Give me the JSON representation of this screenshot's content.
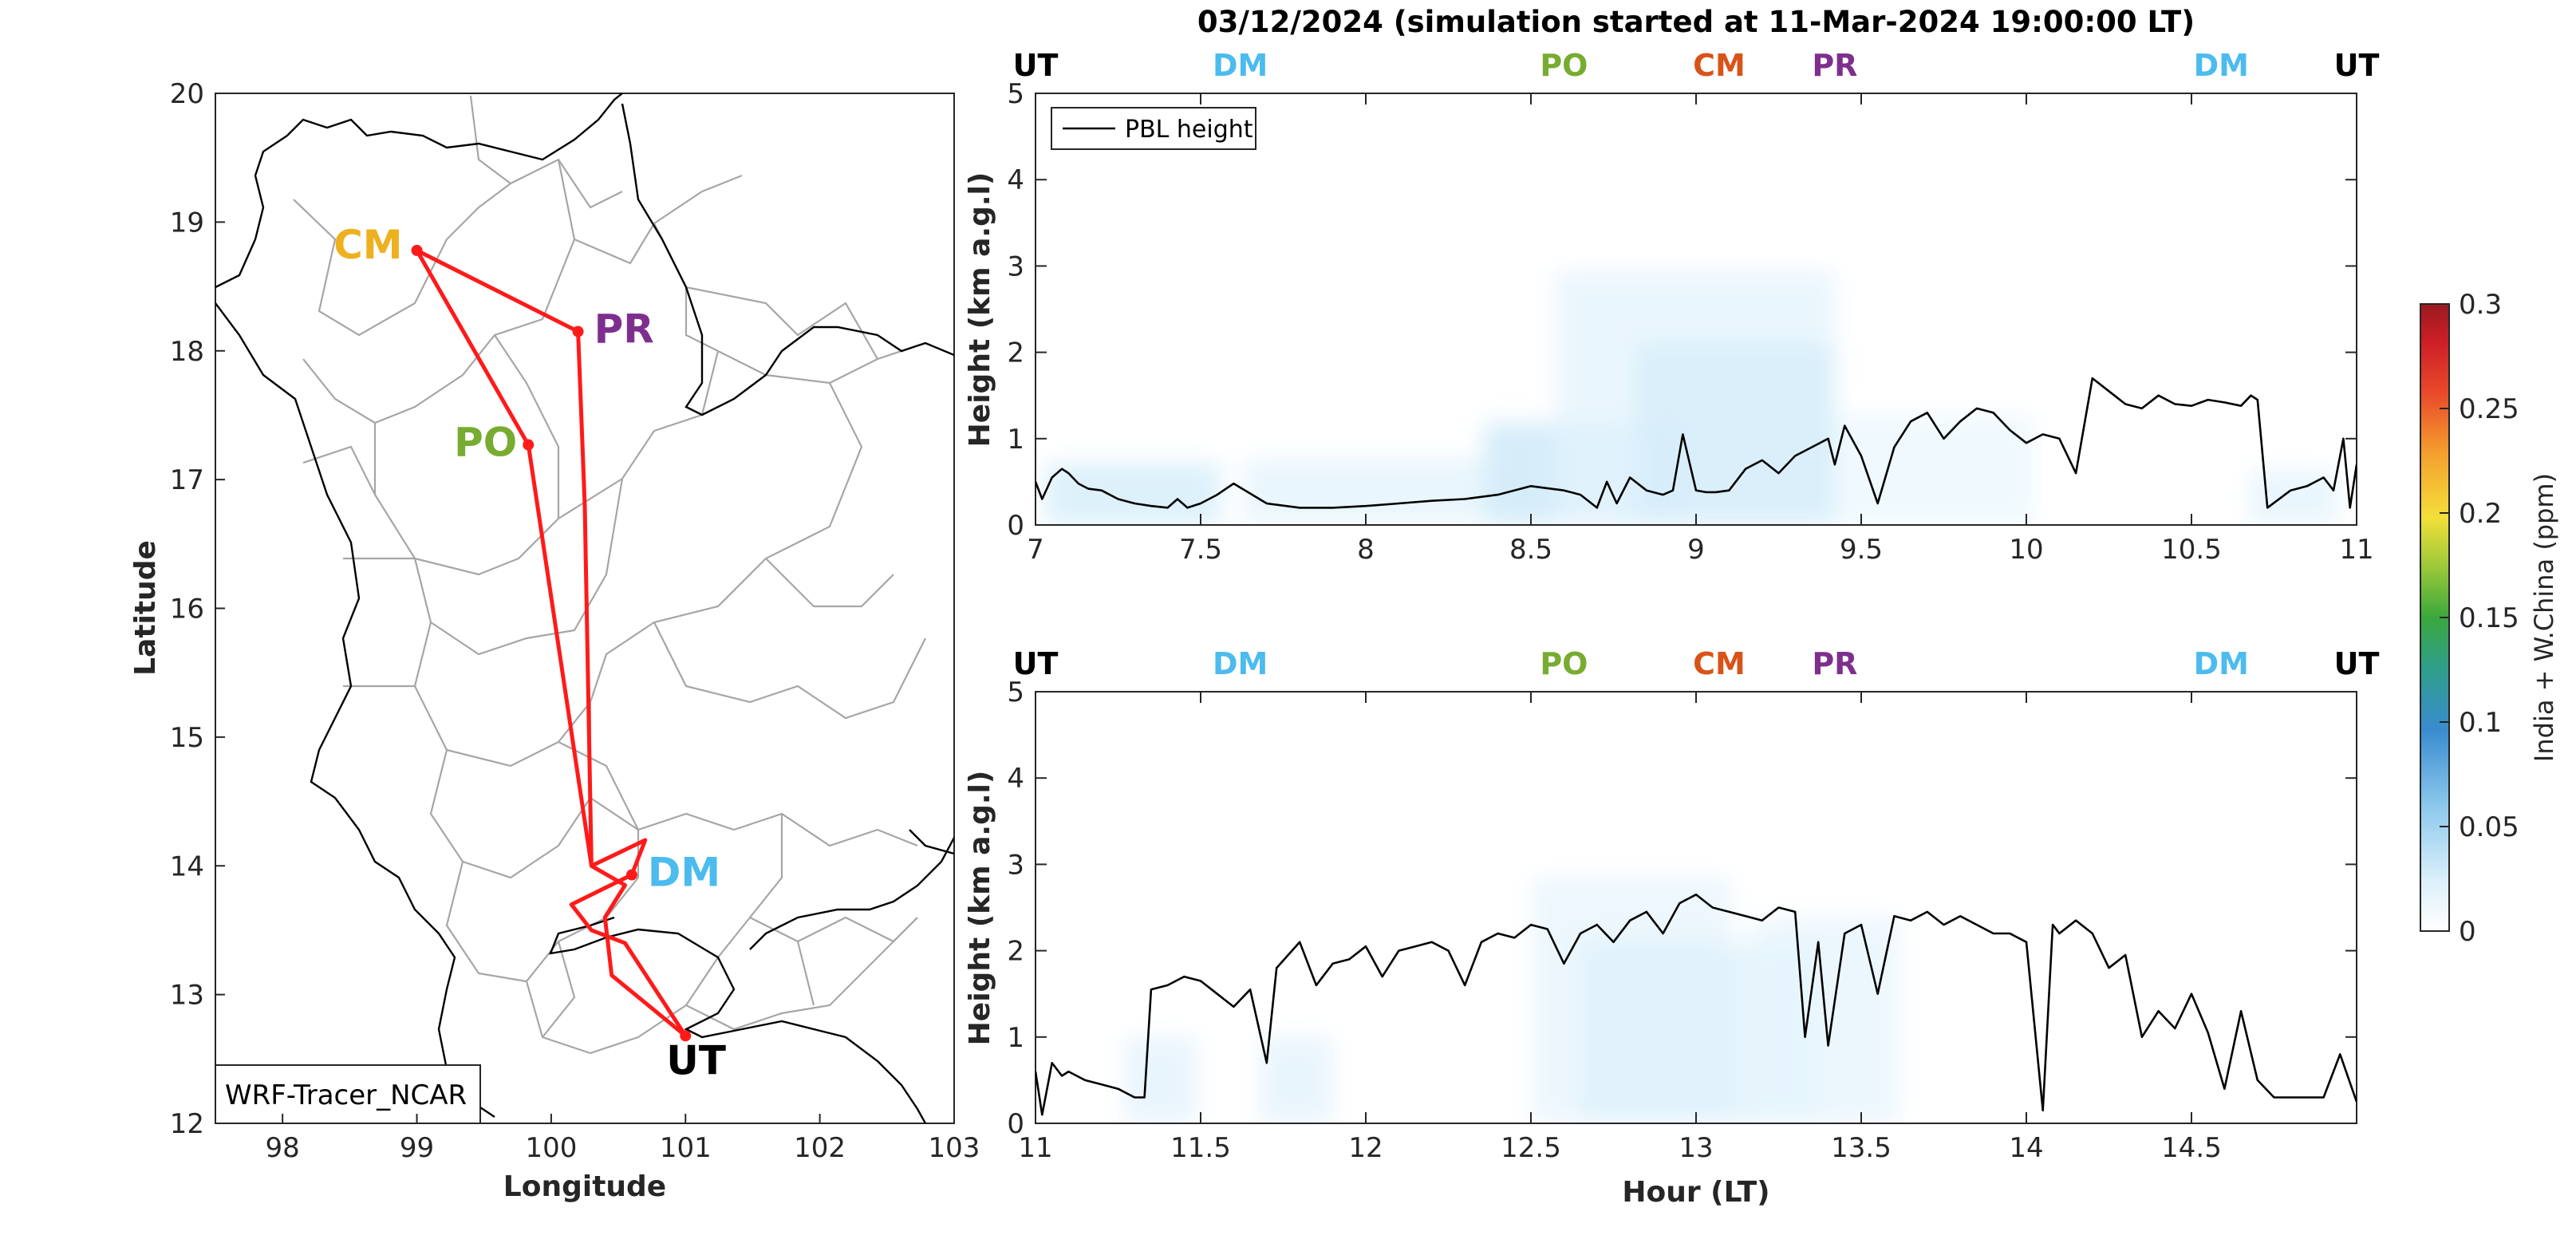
{
  "title": "03/12/2024 (simulation started at 11-Mar-2024 19:00:00 LT)",
  "colors": {
    "track": "#ff1a1a",
    "UT": "#000000",
    "DM": "#4cbbee",
    "PO": "#77ac30",
    "CM": "#edb120",
    "CM_top": "#d95319",
    "PR": "#7e2f8e",
    "tracer_light": "#dcf0fb",
    "tracer_mid": "#b8e0f6",
    "pbl": "#000000"
  },
  "map": {
    "xlabel": "Longitude",
    "ylabel": "Latitude",
    "xlim": [
      97.5,
      103
    ],
    "ylim": [
      12,
      20
    ],
    "xticks": [
      "98",
      "99",
      "100",
      "101",
      "102",
      "103"
    ],
    "yticks": [
      "12",
      "13",
      "14",
      "15",
      "16",
      "17",
      "18",
      "19",
      "20"
    ],
    "legend": "WRF-Tracer_NCAR",
    "sites": [
      {
        "id": "CM",
        "label": "CM",
        "lon": 99.0,
        "lat": 18.78
      },
      {
        "id": "PR",
        "label": "PR",
        "lon": 100.2,
        "lat": 18.15
      },
      {
        "id": "PO",
        "label": "PO",
        "lon": 99.83,
        "lat": 17.27
      },
      {
        "id": "DM",
        "label": "DM",
        "lon": 100.6,
        "lat": 13.93
      },
      {
        "id": "UT",
        "label": "UT",
        "lon": 101.0,
        "lat": 12.68
      }
    ]
  },
  "colorbar": {
    "label": "India + W.China (ppm)",
    "ticks": [
      "0",
      "0.05",
      "0.1",
      "0.15",
      "0.2",
      "0.25",
      "0.3"
    ],
    "range": [
      0,
      0.3
    ]
  },
  "chart_data": [
    {
      "type": "line",
      "ylabel": "Height (km a.g.l)",
      "xlabel": "",
      "xlim": [
        7,
        11
      ],
      "ylim": [
        0,
        5
      ],
      "xticks": [
        "7",
        "7.5",
        "8",
        "8.5",
        "9",
        "9.5",
        "10",
        "10.5",
        "11"
      ],
      "yticks": [
        "0",
        "1",
        "2",
        "3",
        "4",
        "5"
      ],
      "legend": "PBL height",
      "legend_position": "top-left",
      "site_marks": [
        {
          "label": "UT",
          "x": 7.0
        },
        {
          "label": "DM",
          "x": 7.62
        },
        {
          "label": "PO",
          "x": 8.6
        },
        {
          "label": "CM",
          "x": 9.07
        },
        {
          "label": "PR",
          "x": 9.42
        },
        {
          "label": "DM",
          "x": 10.59
        },
        {
          "label": "UT",
          "x": 11.0
        }
      ],
      "series": [
        {
          "name": "PBL height",
          "x": [
            7.0,
            7.02,
            7.05,
            7.08,
            7.1,
            7.13,
            7.16,
            7.2,
            7.25,
            7.3,
            7.35,
            7.4,
            7.43,
            7.46,
            7.5,
            7.55,
            7.6,
            7.7,
            7.8,
            7.9,
            8.0,
            8.1,
            8.2,
            8.3,
            8.4,
            8.5,
            8.6,
            8.65,
            8.7,
            8.73,
            8.76,
            8.8,
            8.85,
            8.9,
            8.93,
            8.96,
            9.0,
            9.03,
            9.06,
            9.1,
            9.15,
            9.2,
            9.25,
            9.3,
            9.35,
            9.4,
            9.42,
            9.45,
            9.5,
            9.55,
            9.6,
            9.65,
            9.7,
            9.75,
            9.8,
            9.85,
            9.9,
            9.95,
            10.0,
            10.05,
            10.1,
            10.15,
            10.2,
            10.25,
            10.3,
            10.35,
            10.4,
            10.45,
            10.5,
            10.55,
            10.6,
            10.65,
            10.68,
            10.7,
            10.73,
            10.8,
            10.85,
            10.9,
            10.93,
            10.96,
            10.98,
            11.0
          ],
          "y": [
            0.5,
            0.3,
            0.55,
            0.65,
            0.6,
            0.48,
            0.42,
            0.4,
            0.3,
            0.25,
            0.22,
            0.2,
            0.3,
            0.2,
            0.25,
            0.35,
            0.48,
            0.25,
            0.2,
            0.2,
            0.22,
            0.25,
            0.28,
            0.3,
            0.35,
            0.45,
            0.4,
            0.35,
            0.2,
            0.5,
            0.25,
            0.55,
            0.4,
            0.35,
            0.4,
            1.05,
            0.4,
            0.38,
            0.38,
            0.4,
            0.65,
            0.75,
            0.6,
            0.8,
            0.9,
            1.0,
            0.7,
            1.15,
            0.8,
            0.25,
            0.9,
            1.2,
            1.3,
            1.0,
            1.2,
            1.35,
            1.3,
            1.1,
            0.95,
            1.05,
            1.0,
            0.6,
            1.7,
            1.55,
            1.4,
            1.35,
            1.5,
            1.4,
            1.38,
            1.45,
            1.42,
            1.38,
            1.5,
            1.45,
            0.2,
            0.4,
            0.45,
            0.55,
            0.4,
            1.0,
            0.2,
            0.7
          ]
        }
      ]
    },
    {
      "type": "line",
      "ylabel": "Height (km a.g.l)",
      "xlabel": "Hour (LT)",
      "xlim": [
        11,
        15
      ],
      "ylim": [
        0,
        5
      ],
      "xticks": [
        "11",
        "11.5",
        "12",
        "12.5",
        "13",
        "13.5",
        "14",
        "14.5"
      ],
      "yticks": [
        "0",
        "1",
        "2",
        "3",
        "4",
        "5"
      ],
      "site_marks": [
        {
          "label": "UT",
          "x": 11.0
        },
        {
          "label": "DM",
          "x": 11.62
        },
        {
          "label": "PO",
          "x": 12.6
        },
        {
          "label": "CM",
          "x": 13.07
        },
        {
          "label": "PR",
          "x": 13.42
        },
        {
          "label": "DM",
          "x": 14.59
        },
        {
          "label": "UT",
          "x": 15.0
        }
      ],
      "series": [
        {
          "name": "PBL height",
          "x": [
            11.0,
            11.02,
            11.05,
            11.08,
            11.1,
            11.15,
            11.2,
            11.25,
            11.3,
            11.33,
            11.35,
            11.4,
            11.45,
            11.5,
            11.55,
            11.6,
            11.65,
            11.7,
            11.73,
            11.8,
            11.85,
            11.9,
            11.95,
            12.0,
            12.05,
            12.1,
            12.15,
            12.2,
            12.25,
            12.3,
            12.35,
            12.4,
            12.45,
            12.5,
            12.55,
            12.6,
            12.65,
            12.7,
            12.75,
            12.8,
            12.85,
            12.9,
            12.95,
            13.0,
            13.05,
            13.1,
            13.15,
            13.2,
            13.25,
            13.3,
            13.33,
            13.37,
            13.4,
            13.45,
            13.5,
            13.55,
            13.6,
            13.65,
            13.7,
            13.75,
            13.8,
            13.85,
            13.9,
            13.95,
            14.0,
            14.05,
            14.08,
            14.1,
            14.15,
            14.2,
            14.25,
            14.3,
            14.35,
            14.4,
            14.45,
            14.5,
            14.55,
            14.6,
            14.65,
            14.7,
            14.75,
            14.8,
            14.85,
            14.9,
            14.95,
            15.0
          ],
          "y": [
            0.6,
            0.1,
            0.7,
            0.55,
            0.6,
            0.5,
            0.45,
            0.4,
            0.3,
            0.3,
            1.55,
            1.6,
            1.7,
            1.65,
            1.5,
            1.35,
            1.55,
            0.7,
            1.8,
            2.1,
            1.6,
            1.85,
            1.9,
            2.05,
            1.7,
            2.0,
            2.05,
            2.1,
            2.0,
            1.6,
            2.1,
            2.2,
            2.15,
            2.3,
            2.25,
            1.85,
            2.2,
            2.3,
            2.1,
            2.35,
            2.45,
            2.2,
            2.55,
            2.65,
            2.5,
            2.45,
            2.4,
            2.35,
            2.5,
            2.45,
            1.0,
            2.1,
            0.9,
            2.2,
            2.3,
            1.5,
            2.4,
            2.35,
            2.45,
            2.3,
            2.4,
            2.3,
            2.2,
            2.2,
            2.1,
            0.15,
            2.3,
            2.2,
            2.35,
            2.2,
            1.8,
            1.95,
            1.0,
            1.3,
            1.1,
            1.5,
            1.05,
            0.4,
            1.3,
            0.5,
            0.3,
            0.3,
            0.3,
            0.3,
            0.8,
            0.25
          ]
        }
      ]
    }
  ]
}
